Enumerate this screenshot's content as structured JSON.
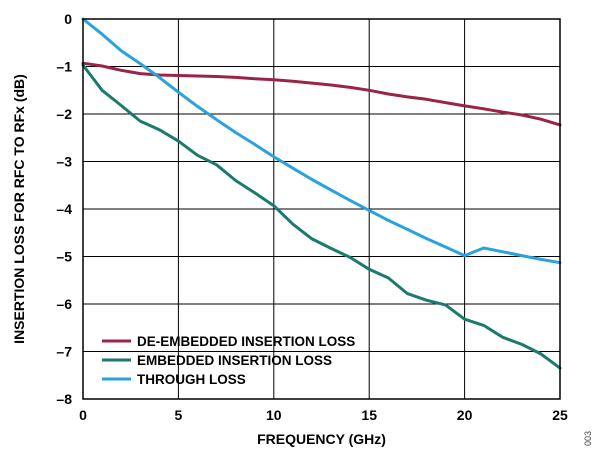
{
  "figure_id": "003",
  "chart_data": {
    "type": "line",
    "title": "",
    "xlabel": "FREQUENCY (GHz)",
    "ylabel": "INSERTION LOSS FOR RFC TO RFx (dB)",
    "xlim": [
      0,
      25
    ],
    "ylim": [
      -8,
      0
    ],
    "xticks": [
      0,
      5,
      10,
      15,
      20,
      25
    ],
    "yticks": [
      0,
      -1,
      -2,
      -3,
      -4,
      -5,
      -6,
      -7,
      -8
    ],
    "grid": true,
    "legend_position": "bottom-left",
    "series": [
      {
        "name": "DE-EMBEDDED INSERTION LOSS",
        "color": "#9b2346",
        "x": [
          0,
          1,
          2,
          3,
          4,
          5,
          6,
          7,
          8,
          9,
          10,
          11,
          12,
          13,
          14,
          15,
          16,
          17,
          18,
          19,
          20,
          21,
          22,
          23,
          24,
          25
        ],
        "y": [
          -0.93,
          -0.99,
          -1.08,
          -1.15,
          -1.18,
          -1.19,
          -1.2,
          -1.21,
          -1.23,
          -1.26,
          -1.28,
          -1.31,
          -1.35,
          -1.39,
          -1.44,
          -1.5,
          -1.58,
          -1.64,
          -1.69,
          -1.76,
          -1.83,
          -1.89,
          -1.96,
          -2.02,
          -2.11,
          -2.23
        ]
      },
      {
        "name": "EMBEDDED INSERTION LOSS",
        "color": "#1a7a6b",
        "x": [
          0,
          1,
          2,
          3,
          4,
          5,
          6,
          7,
          8,
          9,
          10,
          11,
          12,
          13,
          14,
          15,
          16,
          17,
          18,
          19,
          20,
          21,
          22,
          23,
          24,
          25
        ],
        "y": [
          -0.97,
          -1.5,
          -1.82,
          -2.15,
          -2.33,
          -2.57,
          -2.87,
          -3.07,
          -3.4,
          -3.66,
          -3.93,
          -4.32,
          -4.63,
          -4.83,
          -5.02,
          -5.27,
          -5.45,
          -5.78,
          -5.92,
          -6.02,
          -6.32,
          -6.45,
          -6.7,
          -6.85,
          -7.05,
          -7.35
        ]
      },
      {
        "name": "THROUGH LOSS",
        "color": "#2aa3dc",
        "x": [
          0,
          1,
          2,
          3,
          4,
          5,
          6,
          7,
          8,
          9,
          10,
          11,
          12,
          13,
          14,
          15,
          16,
          17,
          18,
          19,
          20,
          21,
          22,
          23,
          24,
          25
        ],
        "y": [
          0,
          -0.32,
          -0.67,
          -0.94,
          -1.23,
          -1.54,
          -1.84,
          -2.12,
          -2.39,
          -2.64,
          -2.9,
          -3.14,
          -3.38,
          -3.6,
          -3.82,
          -4.03,
          -4.24,
          -4.43,
          -4.62,
          -4.8,
          -4.98,
          -4.82,
          -4.9,
          -4.98,
          -5.06,
          -5.13
        ]
      }
    ]
  }
}
